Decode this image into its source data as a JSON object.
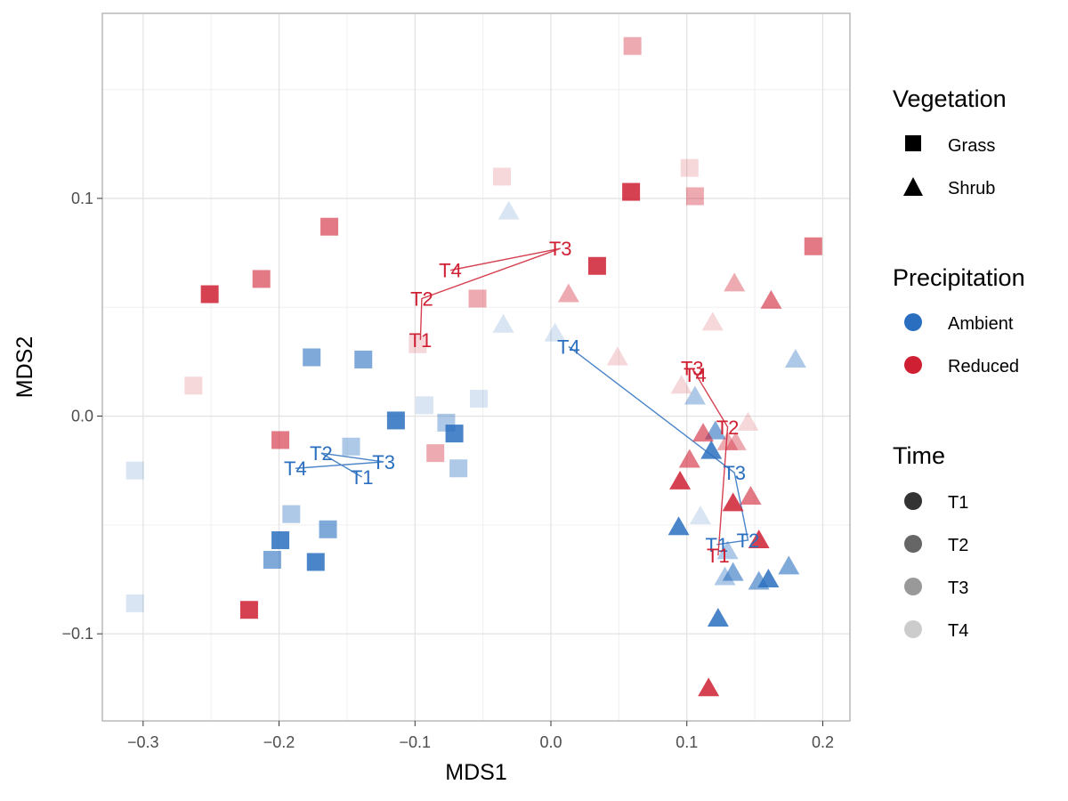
{
  "chart_data": {
    "type": "scatter",
    "xlabel": "MDS1",
    "ylabel": "MDS2",
    "xlim": [
      -0.33,
      0.22
    ],
    "ylim": [
      -0.14,
      0.185
    ],
    "x_ticks": [
      -0.3,
      -0.2,
      -0.1,
      0.0,
      0.1,
      0.2
    ],
    "x_tick_labels": [
      "−0.3",
      "−0.2",
      "−0.1",
      "0.0",
      "0.1",
      "0.2"
    ],
    "y_ticks": [
      -0.1,
      0.0,
      0.1
    ],
    "y_tick_labels": [
      "−0.1",
      "0.0",
      "0.1"
    ],
    "grid": true,
    "colors": {
      "Ambient": "#2a6fbf",
      "Reduced": "#cf2033"
    },
    "time_alpha": {
      "T1": 0.85,
      "T2": 0.6,
      "T3": 0.38,
      "T4": 0.18
    },
    "legend": {
      "placement": "right",
      "vegetation": {
        "title": "Vegetation",
        "entries": [
          "Grass",
          "Shrub"
        ]
      },
      "precipitation": {
        "title": "Precipitation",
        "entries": [
          "Ambient",
          "Reduced"
        ]
      },
      "time": {
        "title": "Time",
        "entries": [
          "T1",
          "T2",
          "T3",
          "T4"
        ]
      }
    },
    "points": [
      {
        "veg": "Grass",
        "precip": "Ambient",
        "time": "T1",
        "x": -0.114,
        "y": -0.002
      },
      {
        "veg": "Grass",
        "precip": "Ambient",
        "time": "T1",
        "x": -0.071,
        "y": -0.008
      },
      {
        "veg": "Grass",
        "precip": "Ambient",
        "time": "T1",
        "x": -0.199,
        "y": -0.057
      },
      {
        "veg": "Grass",
        "precip": "Ambient",
        "time": "T1",
        "x": -0.173,
        "y": -0.067
      },
      {
        "veg": "Grass",
        "precip": "Ambient",
        "time": "T2",
        "x": -0.176,
        "y": 0.027
      },
      {
        "veg": "Grass",
        "precip": "Ambient",
        "time": "T2",
        "x": -0.138,
        "y": 0.026
      },
      {
        "veg": "Grass",
        "precip": "Ambient",
        "time": "T2",
        "x": -0.164,
        "y": -0.052
      },
      {
        "veg": "Grass",
        "precip": "Ambient",
        "time": "T2",
        "x": -0.205,
        "y": -0.066
      },
      {
        "veg": "Grass",
        "precip": "Ambient",
        "time": "T3",
        "x": -0.147,
        "y": -0.014
      },
      {
        "veg": "Grass",
        "precip": "Ambient",
        "time": "T3",
        "x": -0.077,
        "y": -0.003
      },
      {
        "veg": "Grass",
        "precip": "Ambient",
        "time": "T3",
        "x": -0.068,
        "y": -0.024
      },
      {
        "veg": "Grass",
        "precip": "Ambient",
        "time": "T3",
        "x": -0.191,
        "y": -0.045
      },
      {
        "veg": "Grass",
        "precip": "Ambient",
        "time": "T4",
        "x": -0.093,
        "y": 0.005
      },
      {
        "veg": "Grass",
        "precip": "Ambient",
        "time": "T4",
        "x": -0.053,
        "y": 0.008
      },
      {
        "veg": "Grass",
        "precip": "Ambient",
        "time": "T4",
        "x": -0.306,
        "y": -0.025
      },
      {
        "veg": "Grass",
        "precip": "Ambient",
        "time": "T4",
        "x": -0.306,
        "y": -0.086
      },
      {
        "veg": "Grass",
        "precip": "Reduced",
        "time": "T1",
        "x": -0.251,
        "y": 0.056
      },
      {
        "veg": "Grass",
        "precip": "Reduced",
        "time": "T1",
        "x": -0.222,
        "y": -0.089
      },
      {
        "veg": "Grass",
        "precip": "Reduced",
        "time": "T1",
        "x": 0.059,
        "y": 0.103
      },
      {
        "veg": "Grass",
        "precip": "Reduced",
        "time": "T1",
        "x": 0.034,
        "y": 0.069
      },
      {
        "veg": "Grass",
        "precip": "Reduced",
        "time": "T2",
        "x": -0.213,
        "y": 0.063
      },
      {
        "veg": "Grass",
        "precip": "Reduced",
        "time": "T2",
        "x": -0.163,
        "y": 0.087
      },
      {
        "veg": "Grass",
        "precip": "Reduced",
        "time": "T2",
        "x": -0.199,
        "y": -0.011
      },
      {
        "veg": "Grass",
        "precip": "Reduced",
        "time": "T2",
        "x": 0.193,
        "y": 0.078
      },
      {
        "veg": "Grass",
        "precip": "Reduced",
        "time": "T3",
        "x": -0.054,
        "y": 0.054
      },
      {
        "veg": "Grass",
        "precip": "Reduced",
        "time": "T3",
        "x": -0.085,
        "y": -0.017
      },
      {
        "veg": "Grass",
        "precip": "Reduced",
        "time": "T3",
        "x": 0.06,
        "y": 0.17
      },
      {
        "veg": "Grass",
        "precip": "Reduced",
        "time": "T3",
        "x": 0.106,
        "y": 0.101
      },
      {
        "veg": "Grass",
        "precip": "Reduced",
        "time": "T4",
        "x": -0.263,
        "y": 0.014
      },
      {
        "veg": "Grass",
        "precip": "Reduced",
        "time": "T4",
        "x": -0.036,
        "y": 0.11
      },
      {
        "veg": "Grass",
        "precip": "Reduced",
        "time": "T4",
        "x": 0.102,
        "y": 0.114
      },
      {
        "veg": "Grass",
        "precip": "Reduced",
        "time": "T4",
        "x": -0.098,
        "y": 0.033
      },
      {
        "veg": "Shrub",
        "precip": "Ambient",
        "time": "T1",
        "x": 0.094,
        "y": -0.051
      },
      {
        "veg": "Shrub",
        "precip": "Ambient",
        "time": "T1",
        "x": 0.123,
        "y": -0.093
      },
      {
        "veg": "Shrub",
        "precip": "Ambient",
        "time": "T1",
        "x": 0.16,
        "y": -0.075
      },
      {
        "veg": "Shrub",
        "precip": "Ambient",
        "time": "T1",
        "x": 0.118,
        "y": -0.016
      },
      {
        "veg": "Shrub",
        "precip": "Ambient",
        "time": "T2",
        "x": 0.121,
        "y": -0.007
      },
      {
        "veg": "Shrub",
        "precip": "Ambient",
        "time": "T2",
        "x": 0.134,
        "y": -0.072
      },
      {
        "veg": "Shrub",
        "precip": "Ambient",
        "time": "T2",
        "x": 0.175,
        "y": -0.069
      },
      {
        "veg": "Shrub",
        "precip": "Ambient",
        "time": "T2",
        "x": 0.153,
        "y": -0.076
      },
      {
        "veg": "Shrub",
        "precip": "Ambient",
        "time": "T3",
        "x": 0.18,
        "y": 0.026
      },
      {
        "veg": "Shrub",
        "precip": "Ambient",
        "time": "T3",
        "x": 0.106,
        "y": 0.009
      },
      {
        "veg": "Shrub",
        "precip": "Ambient",
        "time": "T3",
        "x": 0.128,
        "y": -0.074
      },
      {
        "veg": "Shrub",
        "precip": "Ambient",
        "time": "T3",
        "x": 0.13,
        "y": -0.062
      },
      {
        "veg": "Shrub",
        "precip": "Ambient",
        "time": "T4",
        "x": -0.031,
        "y": 0.094
      },
      {
        "veg": "Shrub",
        "precip": "Ambient",
        "time": "T4",
        "x": -0.035,
        "y": 0.042
      },
      {
        "veg": "Shrub",
        "precip": "Ambient",
        "time": "T4",
        "x": 0.003,
        "y": 0.038
      },
      {
        "veg": "Shrub",
        "precip": "Ambient",
        "time": "T4",
        "x": 0.11,
        "y": -0.046
      },
      {
        "veg": "Shrub",
        "precip": "Reduced",
        "time": "T1",
        "x": 0.095,
        "y": -0.03
      },
      {
        "veg": "Shrub",
        "precip": "Reduced",
        "time": "T1",
        "x": 0.134,
        "y": -0.04
      },
      {
        "veg": "Shrub",
        "precip": "Reduced",
        "time": "T1",
        "x": 0.116,
        "y": -0.125
      },
      {
        "veg": "Shrub",
        "precip": "Reduced",
        "time": "T1",
        "x": 0.153,
        "y": -0.057
      },
      {
        "veg": "Shrub",
        "precip": "Reduced",
        "time": "T2",
        "x": 0.162,
        "y": 0.053
      },
      {
        "veg": "Shrub",
        "precip": "Reduced",
        "time": "T2",
        "x": 0.112,
        "y": -0.008
      },
      {
        "veg": "Shrub",
        "precip": "Reduced",
        "time": "T2",
        "x": 0.147,
        "y": -0.037
      },
      {
        "veg": "Shrub",
        "precip": "Reduced",
        "time": "T2",
        "x": 0.102,
        "y": -0.02
      },
      {
        "veg": "Shrub",
        "precip": "Reduced",
        "time": "T3",
        "x": 0.013,
        "y": 0.056
      },
      {
        "veg": "Shrub",
        "precip": "Reduced",
        "time": "T3",
        "x": 0.135,
        "y": 0.061
      },
      {
        "veg": "Shrub",
        "precip": "Reduced",
        "time": "T3",
        "x": 0.136,
        "y": -0.012
      },
      {
        "veg": "Shrub",
        "precip": "Reduced",
        "time": "T3",
        "x": 0.13,
        "y": -0.012
      },
      {
        "veg": "Shrub",
        "precip": "Reduced",
        "time": "T4",
        "x": 0.049,
        "y": 0.027
      },
      {
        "veg": "Shrub",
        "precip": "Reduced",
        "time": "T4",
        "x": 0.119,
        "y": 0.043
      },
      {
        "veg": "Shrub",
        "precip": "Reduced",
        "time": "T4",
        "x": 0.145,
        "y": -0.003
      },
      {
        "veg": "Shrub",
        "precip": "Reduced",
        "time": "T4",
        "x": 0.096,
        "y": 0.014
      }
    ],
    "trajectories": [
      {
        "veg": "Grass",
        "precip": "Ambient",
        "points": [
          {
            "label": "T1",
            "x": -0.139,
            "y": -0.028
          },
          {
            "label": "T2",
            "x": -0.169,
            "y": -0.017
          },
          {
            "label": "T3",
            "x": -0.123,
            "y": -0.021
          },
          {
            "label": "T4",
            "x": -0.188,
            "y": -0.024
          }
        ]
      },
      {
        "veg": "Grass",
        "precip": "Reduced",
        "points": [
          {
            "label": "T1",
            "x": -0.096,
            "y": 0.035
          },
          {
            "label": "T2",
            "x": -0.095,
            "y": 0.054
          },
          {
            "label": "T3",
            "x": 0.007,
            "y": 0.077
          },
          {
            "label": "T4",
            "x": -0.074,
            "y": 0.067
          }
        ]
      },
      {
        "veg": "Shrub",
        "precip": "Ambient",
        "points": [
          {
            "label": "T1",
            "x": 0.122,
            "y": -0.059
          },
          {
            "label": "T2",
            "x": 0.145,
            "y": -0.057
          },
          {
            "label": "T3",
            "x": 0.135,
            "y": -0.026
          },
          {
            "label": "T4",
            "x": 0.013,
            "y": 0.032
          }
        ]
      },
      {
        "veg": "Shrub",
        "precip": "Reduced",
        "points": [
          {
            "label": "T1",
            "x": 0.123,
            "y": -0.064
          },
          {
            "label": "T2",
            "x": 0.13,
            "y": -0.005
          },
          {
            "label": "T3",
            "x": 0.104,
            "y": 0.022
          },
          {
            "label": "T4",
            "x": 0.106,
            "y": 0.019
          }
        ]
      }
    ]
  }
}
